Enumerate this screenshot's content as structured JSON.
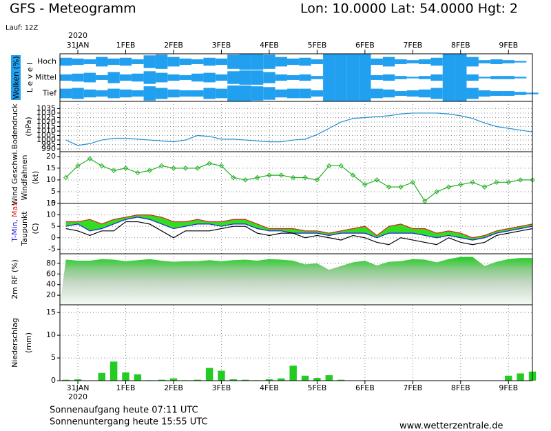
{
  "header": {
    "title": "GFS - Meteogramm",
    "location": "Lon: 10.0000 Lat: 54.0000 Hgt: 2",
    "run": "Lauf: 12Z"
  },
  "time_axis": {
    "year": "2020",
    "xlim": [
      -9,
      228
    ],
    "xticks": [
      {
        "value": 0,
        "label": "31JAN"
      },
      {
        "value": 24,
        "label": "1FEB"
      },
      {
        "value": 48,
        "label": "2FEB"
      },
      {
        "value": 72,
        "label": "3FEB"
      },
      {
        "value": 96,
        "label": "4FEB"
      },
      {
        "value": 120,
        "label": "5FEB"
      },
      {
        "value": 144,
        "label": "6FEB"
      },
      {
        "value": 168,
        "label": "7FEB"
      },
      {
        "value": 192,
        "label": "8FEB"
      },
      {
        "value": 216,
        "label": "9FEB"
      }
    ],
    "x": [
      -6,
      0,
      6,
      12,
      18,
      24,
      30,
      36,
      42,
      48,
      54,
      60,
      66,
      72,
      78,
      84,
      90,
      96,
      102,
      108,
      114,
      120,
      126,
      132,
      138,
      144,
      150,
      156,
      162,
      168,
      174,
      180,
      186,
      192,
      198,
      204,
      210,
      216,
      222,
      228
    ]
  },
  "chart_data": [
    {
      "type": "cloud",
      "ylabel": "Wolken (%)",
      "ylabel2": "L e v e l",
      "color": "#22a0f0",
      "series": [
        {
          "name": "Hoch",
          "values": [
            50,
            40,
            30,
            60,
            40,
            50,
            30,
            80,
            90,
            60,
            40,
            30,
            50,
            40,
            90,
            100,
            100,
            90,
            60,
            40,
            50,
            30,
            100,
            100,
            100,
            100,
            40,
            60,
            30,
            20,
            30,
            50,
            100,
            100,
            60,
            20,
            30,
            20,
            10,
            0
          ]
        },
        {
          "name": "Mittel",
          "values": [
            40,
            50,
            60,
            30,
            70,
            40,
            50,
            80,
            60,
            40,
            30,
            50,
            60,
            40,
            80,
            90,
            90,
            70,
            40,
            30,
            40,
            20,
            100,
            100,
            100,
            100,
            30,
            40,
            20,
            10,
            20,
            40,
            100,
            100,
            40,
            10,
            20,
            20,
            10,
            0
          ]
        },
        {
          "name": "Tief",
          "values": [
            60,
            70,
            50,
            40,
            60,
            50,
            40,
            90,
            70,
            50,
            40,
            40,
            70,
            60,
            100,
            100,
            90,
            80,
            50,
            60,
            60,
            40,
            100,
            100,
            100,
            100,
            60,
            50,
            30,
            40,
            50,
            70,
            100,
            100,
            70,
            40,
            30,
            30,
            20,
            10
          ]
        }
      ]
    },
    {
      "type": "line",
      "ylabel": "Bodendruck",
      "yunit": "(hPa)",
      "ylim": [
        987,
        1043
      ],
      "yticks": [
        990,
        995,
        1000,
        1005,
        1010,
        1015,
        1020,
        1025,
        1030,
        1035
      ],
      "grid": true,
      "series": [
        {
          "color": "#1e8fd0",
          "values": [
            1000,
            994,
            996,
            1000,
            1002,
            1002,
            1001,
            1000,
            999,
            998,
            1000,
            1005,
            1004,
            1001,
            1001,
            1000,
            999,
            998,
            998,
            1000,
            1001,
            1006,
            1013,
            1020,
            1024,
            1025,
            1026,
            1027,
            1029,
            1030,
            1030,
            1030,
            1029,
            1027,
            1024,
            1019,
            1015,
            1013,
            1011,
            1009
          ]
        }
      ]
    },
    {
      "type": "line",
      "ylabel": "Wind Geschwi.",
      "ylabel2": "Windfahnen",
      "yunit": "(kt)",
      "ylim": [
        0,
        22
      ],
      "yticks": [
        0,
        5,
        10,
        15,
        20
      ],
      "grid": true,
      "markers": true,
      "series": [
        {
          "color": "#22b022",
          "values": [
            11,
            16,
            19,
            16,
            14,
            15,
            13,
            14,
            16,
            15,
            15,
            15,
            17,
            16,
            11,
            10,
            11,
            12,
            12,
            11,
            11,
            10,
            16,
            16,
            12,
            8,
            10,
            7,
            7,
            9,
            1,
            5,
            7,
            8,
            9,
            7,
            9,
            9,
            10,
            10
          ]
        }
      ]
    },
    {
      "type": "line",
      "yunit": "(C)",
      "ylim": [
        -7,
        15
      ],
      "yticks": [
        -5,
        0,
        5,
        10,
        15
      ],
      "grid": true,
      "fill_between": "#33dd22",
      "series": [
        {
          "name": "Max",
          "color": "#e02020",
          "values": [
            7,
            7,
            8,
            6,
            8,
            9,
            10,
            10,
            9,
            7,
            7,
            8,
            7,
            7,
            8,
            8,
            6,
            4,
            4,
            4,
            3,
            3,
            2,
            3,
            4,
            5,
            1,
            5,
            6,
            4,
            4,
            2,
            3,
            2,
            0,
            1,
            3,
            4,
            5,
            6
          ]
        },
        {
          "name": "T-Min,",
          "color": "#2020e0",
          "values": [
            5,
            6,
            3,
            4,
            6,
            8,
            9,
            8,
            6,
            4,
            5,
            6,
            6,
            5,
            6,
            6,
            4,
            3,
            3,
            2,
            2,
            2,
            1,
            2,
            2,
            2,
            0,
            2,
            2,
            2,
            1,
            0,
            1,
            0,
            -1,
            0,
            2,
            3,
            4,
            5
          ]
        },
        {
          "name": "Taupunkt",
          "color": "#000000",
          "values": [
            4,
            3,
            1,
            3,
            3,
            7,
            7,
            6,
            3,
            0,
            3,
            3,
            3,
            4,
            5,
            5,
            2,
            1,
            2,
            2,
            0,
            1,
            0,
            -1,
            1,
            0,
            -2,
            -3,
            0,
            -1,
            -2,
            -3,
            0,
            -2,
            -3,
            -2,
            1,
            2,
            3,
            4
          ]
        }
      ]
    },
    {
      "type": "area",
      "ylabel": "2m RF (%)",
      "ylim": [
        2,
        98
      ],
      "yticks": [
        20,
        40,
        60,
        80
      ],
      "grid": true,
      "series": [
        {
          "color": "#22cc22",
          "values": [
            87,
            85,
            85,
            88,
            87,
            84,
            86,
            88,
            85,
            83,
            84,
            84,
            86,
            84,
            86,
            87,
            85,
            88,
            87,
            85,
            78,
            80,
            68,
            75,
            82,
            85,
            76,
            83,
            84,
            88,
            87,
            82,
            88,
            92,
            92,
            75,
            83,
            88,
            90,
            90
          ]
        }
      ]
    },
    {
      "type": "bar",
      "ylabel": "Niederschlag",
      "yunit": "(mm)",
      "ylim": [
        0,
        16.7
      ],
      "yticks": [
        0,
        5,
        10,
        15
      ],
      "grid": true,
      "series": [
        {
          "color": "#22cc22",
          "values": [
            0.2,
            0.3,
            0,
            1.7,
            4.2,
            1.8,
            1.4,
            0.1,
            0.2,
            0.5,
            0.1,
            0.2,
            2.8,
            2.2,
            0.3,
            0.2,
            0.1,
            0.3,
            0.5,
            3.3,
            1.1,
            0.6,
            1.2,
            0.2,
            0,
            0,
            0,
            0,
            0,
            0,
            0,
            0,
            0,
            0,
            0,
            0,
            0,
            1.1,
            1.6,
            2.0
          ]
        }
      ]
    }
  ],
  "footer": {
    "sunrise": "Sonnenaufgang heute 07:11 UTC",
    "sunset": "Sonnenuntergang heute 15:55 UTC",
    "source": "www.wetterzentrale.de"
  }
}
